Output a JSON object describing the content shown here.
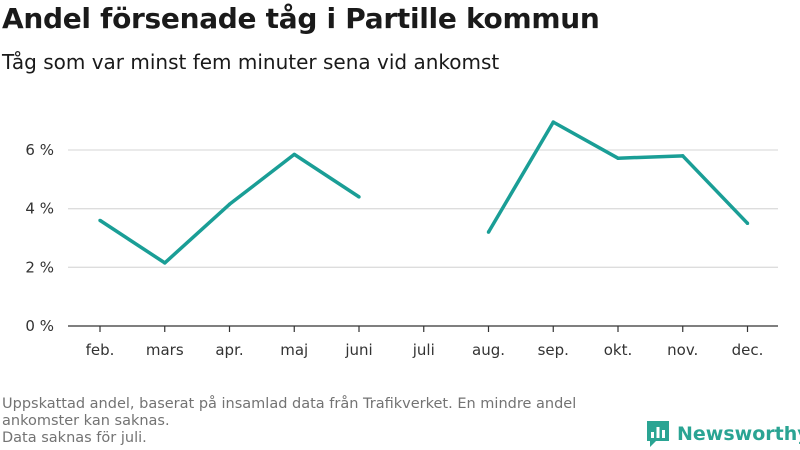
{
  "header": {
    "title": "Andel försenade tåg i Partille kommun",
    "subtitle": "Tåg som var minst fem minuter sena vid ankomst"
  },
  "footnote": {
    "line1": "Uppskattad andel, baserat på insamlad data från Trafikverket. En mindre andel ankomster kan saknas.",
    "line2": "Data saknas för juli."
  },
  "brand": {
    "name": "Newsworthy",
    "icon": "newsworthy-logo-icon"
  },
  "colors": {
    "line": "#1a9e96",
    "grid": "#dddddd",
    "axis": "#333333",
    "brand": "#2aa493"
  },
  "chart_data": {
    "type": "line",
    "categories": [
      "feb.",
      "mars",
      "apr.",
      "maj",
      "juni",
      "juli",
      "aug.",
      "sep.",
      "okt.",
      "nov.",
      "dec."
    ],
    "series": [
      {
        "values": [
          3.6,
          2.15,
          4.15,
          5.85,
          4.4,
          null,
          3.2,
          6.95,
          5.72,
          5.8,
          3.5
        ]
      }
    ],
    "yticks": [
      "0 %",
      "2 %",
      "4 %",
      "6 %"
    ],
    "ytick_values": [
      0,
      2,
      4,
      6
    ],
    "ylim": [
      0,
      7.5
    ],
    "grid": true
  }
}
